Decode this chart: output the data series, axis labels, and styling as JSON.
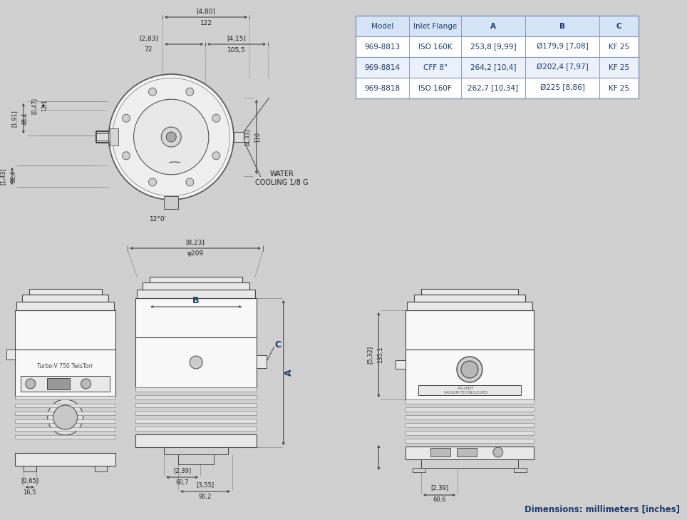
{
  "bg_color": "#d0d0d0",
  "table": {
    "headers": [
      "Model",
      "Inlet Flange",
      "A",
      "B",
      "C"
    ],
    "rows": [
      [
        "969-8813",
        "ISO 160K",
        "253,8 [9,99]",
        "Ø179,9 [7,08]",
        "KF 25"
      ],
      [
        "969-8814",
        "CFF 8\"",
        "264,2 [10,4]",
        "Ø202,4 [7,97]",
        "KF 25"
      ],
      [
        "969-8818",
        "ISO 160F",
        "262,7 [10,34]",
        "Ø225 [8,86]",
        "KF 25"
      ]
    ],
    "header_color": "#d6e4f7",
    "row_colors": [
      "#ffffff",
      "#eaf1fb",
      "#ffffff"
    ],
    "border_color": "#8899bb",
    "text_color_header": "#1a3a6e",
    "text_color_rows": "#1a3a6e",
    "bold_cols": [
      2,
      3,
      4
    ]
  },
  "dim_color": "#333333",
  "label_color": "#1a3a6e",
  "draw_color": "#444444",
  "light_fill": "#f8f8f8",
  "mid_fill": "#e8e8e8",
  "dark_fill": "#d0d0d0",
  "footer_text": "Dimensions: millimeters [inches]",
  "footer_color": "#1a3a6e"
}
